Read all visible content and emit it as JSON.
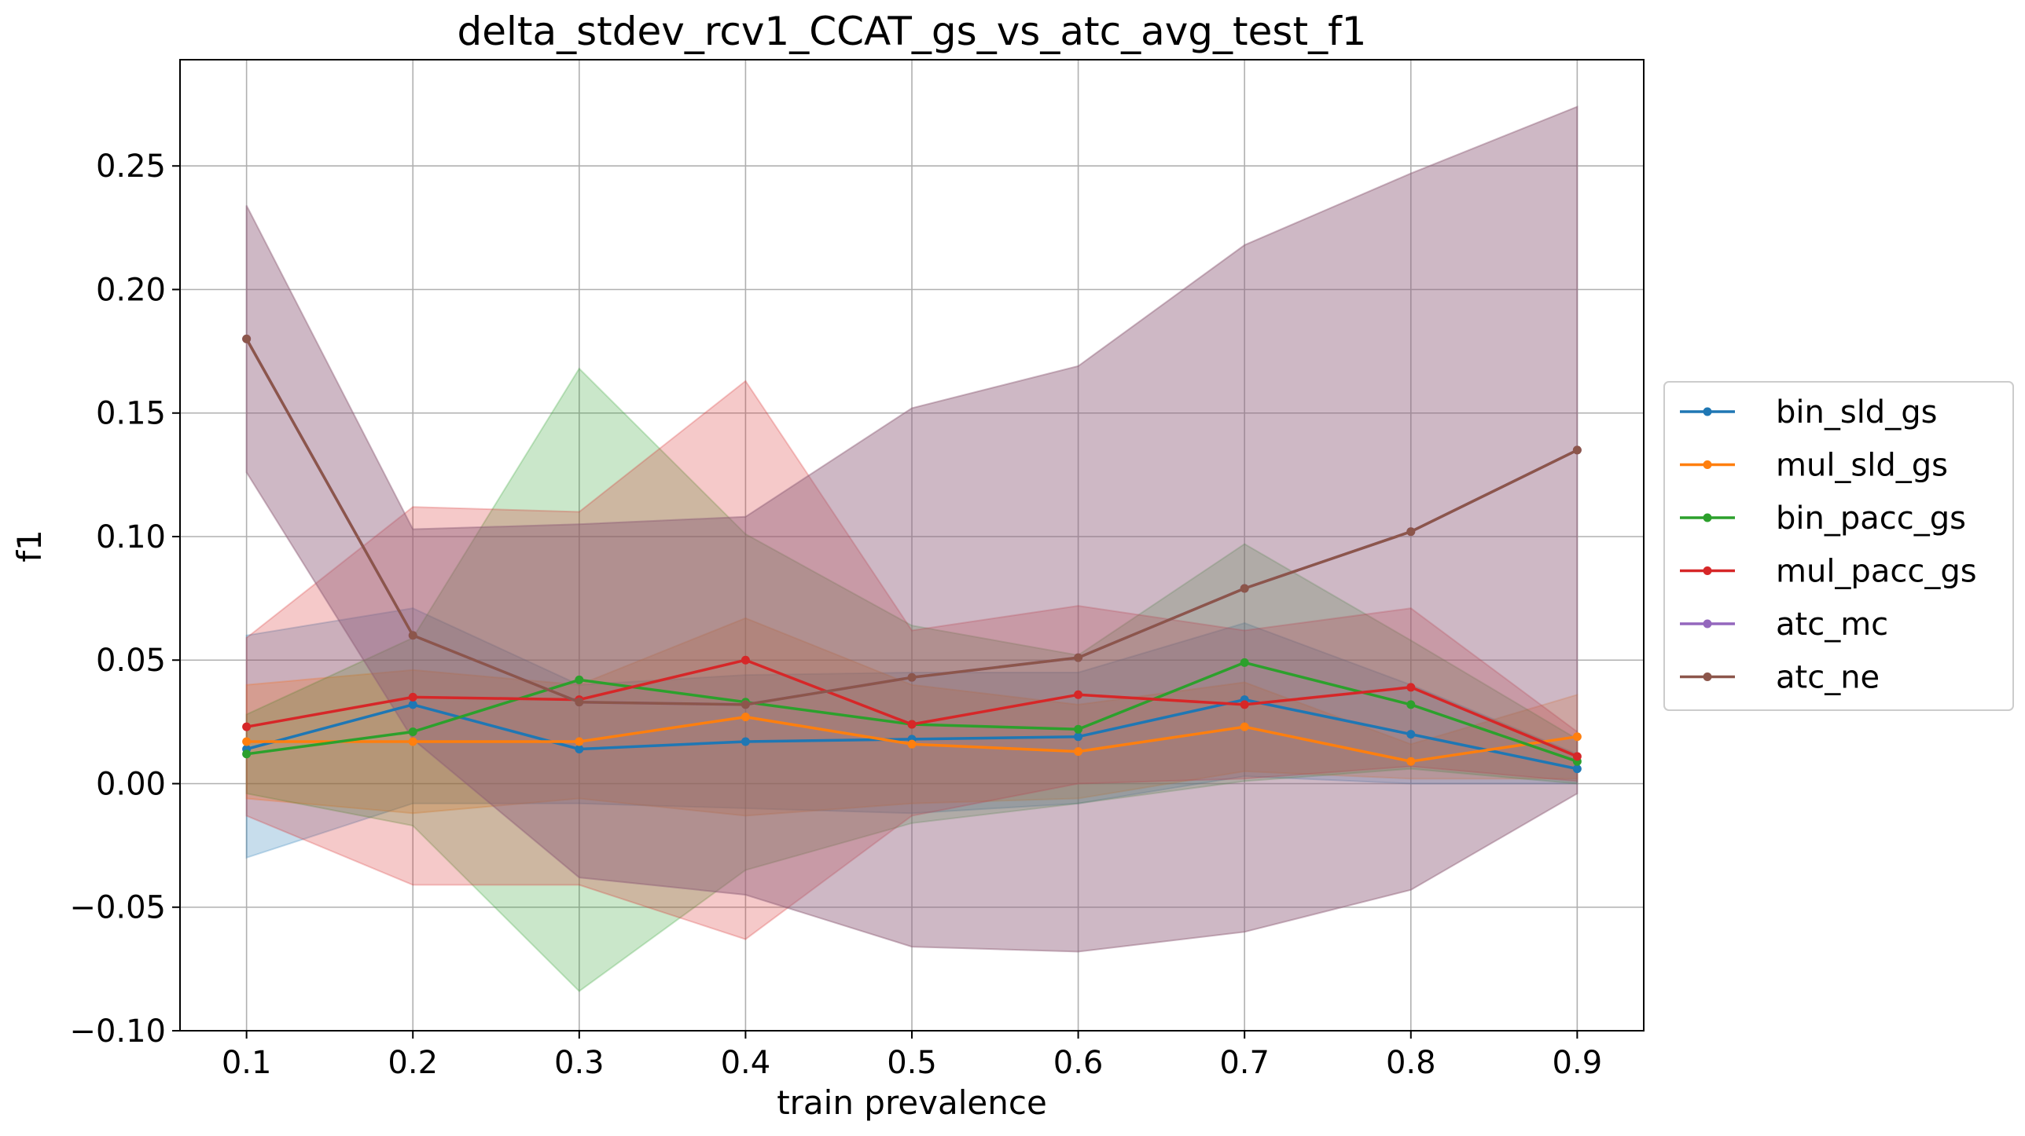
{
  "chart_data": {
    "type": "line",
    "title": "delta_stdev_rcv1_CCAT_gs_vs_atc_avg_test_f1",
    "xlabel": "train prevalence",
    "ylabel": "f1",
    "x": [
      0.1,
      0.2,
      0.3,
      0.4,
      0.5,
      0.6,
      0.7,
      0.8,
      0.9
    ],
    "xticks": [
      "0.1",
      "0.2",
      "0.3",
      "0.4",
      "0.5",
      "0.6",
      "0.7",
      "0.8",
      "0.9"
    ],
    "xlim": [
      0.06,
      0.94
    ],
    "ylim": [
      -0.1,
      0.293
    ],
    "yticks": [
      -0.1,
      -0.05,
      0.0,
      0.05,
      0.1,
      0.15,
      0.2,
      0.25
    ],
    "ytick_labels": [
      "−0.10",
      "−0.05",
      "0.00",
      "0.05",
      "0.10",
      "0.15",
      "0.20",
      "0.25"
    ],
    "grid": true,
    "legend_position": "outside-right",
    "series": [
      {
        "name": "bin_sld_gs",
        "color": "#1f77b4",
        "values": [
          0.014,
          0.032,
          0.014,
          0.017,
          0.018,
          0.019,
          0.034,
          0.02,
          0.006
        ],
        "lower": [
          -0.03,
          -0.008,
          -0.008,
          -0.01,
          -0.012,
          -0.008,
          0.003,
          0.0,
          0.0
        ],
        "upper": [
          0.06,
          0.071,
          0.04,
          0.044,
          0.045,
          0.045,
          0.065,
          0.04,
          0.012
        ]
      },
      {
        "name": "mul_sld_gs",
        "color": "#ff7f0e",
        "values": [
          0.017,
          0.017,
          0.017,
          0.027,
          0.016,
          0.013,
          0.023,
          0.009,
          0.019
        ],
        "lower": [
          -0.006,
          -0.012,
          -0.006,
          -0.013,
          -0.008,
          -0.006,
          0.005,
          0.002,
          0.002
        ],
        "upper": [
          0.04,
          0.046,
          0.04,
          0.067,
          0.04,
          0.032,
          0.041,
          0.016,
          0.036
        ]
      },
      {
        "name": "bin_pacc_gs",
        "color": "#2ca02c",
        "values": [
          0.012,
          0.021,
          0.042,
          0.033,
          0.024,
          0.022,
          0.049,
          0.032,
          0.009
        ],
        "lower": [
          -0.004,
          -0.017,
          -0.084,
          -0.035,
          -0.016,
          -0.008,
          0.001,
          0.006,
          0.0
        ],
        "upper": [
          0.028,
          0.059,
          0.168,
          0.101,
          0.064,
          0.052,
          0.097,
          0.058,
          0.018
        ]
      },
      {
        "name": "mul_pacc_gs",
        "color": "#d62728",
        "values": [
          0.023,
          0.035,
          0.034,
          0.05,
          0.024,
          0.036,
          0.032,
          0.039,
          0.011
        ],
        "lower": [
          -0.013,
          -0.041,
          -0.041,
          -0.063,
          -0.013,
          0.0,
          0.002,
          0.007,
          0.001
        ],
        "upper": [
          0.059,
          0.112,
          0.11,
          0.163,
          0.062,
          0.072,
          0.062,
          0.071,
          0.021
        ]
      },
      {
        "name": "atc_mc",
        "color": "#9467bd",
        "values": [
          0.18,
          0.06,
          0.033,
          0.032,
          0.043,
          0.051,
          0.079,
          0.102,
          0.135
        ],
        "lower": [
          0.126,
          0.018,
          -0.038,
          -0.045,
          -0.066,
          -0.068,
          -0.06,
          -0.043,
          -0.004
        ],
        "upper": [
          0.234,
          0.103,
          0.105,
          0.108,
          0.152,
          0.169,
          0.218,
          0.247,
          0.274
        ]
      },
      {
        "name": "atc_ne",
        "color": "#8c564b",
        "values": [
          0.18,
          0.06,
          0.033,
          0.032,
          0.043,
          0.051,
          0.079,
          0.102,
          0.135
        ],
        "lower": [
          0.126,
          0.018,
          -0.038,
          -0.045,
          -0.066,
          -0.068,
          -0.06,
          -0.043,
          -0.004
        ],
        "upper": [
          0.234,
          0.103,
          0.105,
          0.108,
          0.152,
          0.169,
          0.218,
          0.247,
          0.274
        ]
      }
    ]
  }
}
